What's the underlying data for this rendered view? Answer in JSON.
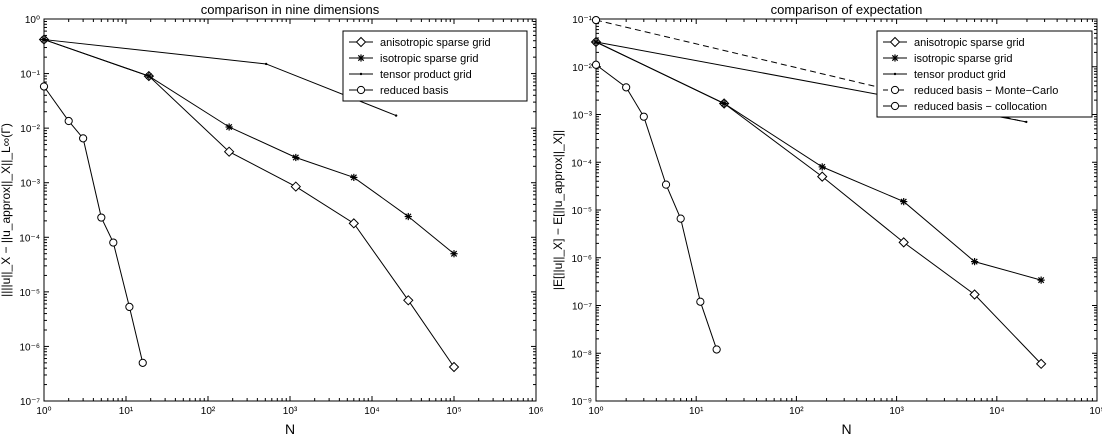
{
  "chart_data": [
    {
      "type": "line",
      "title": "comparison in nine dimensions",
      "xlabel": "N",
      "ylabel": "||||u||_X − ||u_approx||_X||_L∞(Γ)",
      "xscale": "log",
      "yscale": "log",
      "xlim": [
        1,
        1000000
      ],
      "ylim": [
        1e-07,
        1
      ],
      "xticks": [
        "10⁰",
        "10¹",
        "10²",
        "10³",
        "10⁴",
        "10⁵",
        "10⁶"
      ],
      "yticks": [
        "10⁻⁷",
        "10⁻⁶",
        "10⁻⁵",
        "10⁻⁴",
        "10⁻³",
        "10⁻²",
        "10⁻¹",
        "10⁰"
      ],
      "legend_position": "top-right",
      "series": [
        {
          "name": "anisotropic sparse grid",
          "marker": "diamond",
          "x": [
            1,
            19,
            181,
            1177,
            6001,
            27701,
            100001
          ],
          "y": [
            0.42,
            0.09,
            0.0037,
            0.00085,
            0.00018,
            7e-06,
            4.2e-07
          ]
        },
        {
          "name": "isotropic sparse grid",
          "marker": "star",
          "x": [
            1,
            19,
            181,
            1177,
            6001,
            27701,
            100001
          ],
          "y": [
            0.42,
            0.09,
            0.0105,
            0.0029,
            0.00125,
            0.00024,
            5e-05
          ]
        },
        {
          "name": "tensor product grid",
          "marker": "dot",
          "x": [
            1,
            512,
            19683
          ],
          "y": [
            0.42,
            0.15,
            0.017
          ]
        },
        {
          "name": "reduced basis",
          "marker": "circle",
          "x": [
            1,
            2,
            3,
            5,
            7,
            11,
            16
          ],
          "y": [
            0.058,
            0.0135,
            0.0065,
            0.00023,
            8e-05,
            5.3e-06,
            5e-07
          ]
        }
      ]
    },
    {
      "type": "line",
      "title": "comparison of expectation",
      "xlabel": "N",
      "ylabel": "|E[||u||_X] − E[||u_approx||_X]|",
      "xscale": "log",
      "yscale": "log",
      "xlim": [
        1,
        100000
      ],
      "ylim": [
        1e-09,
        0.1
      ],
      "xticks": [
        "10⁰",
        "10¹",
        "10²",
        "10³",
        "10⁴",
        "10⁵"
      ],
      "yticks": [
        "10⁻⁹",
        "10⁻⁸",
        "10⁻⁷",
        "10⁻⁶",
        "10⁻⁵",
        "10⁻⁴",
        "10⁻³",
        "10⁻²",
        "10⁻¹"
      ],
      "legend_position": "top-right",
      "series": [
        {
          "name": "anisotropic sparse grid",
          "marker": "diamond",
          "dash": false,
          "x": [
            1,
            19,
            181,
            1177,
            6001,
            27701
          ],
          "y": [
            0.033,
            0.0017,
            5e-05,
            2.1e-06,
            1.7e-07,
            6e-09
          ]
        },
        {
          "name": "isotropic sparse grid",
          "marker": "star",
          "dash": false,
          "x": [
            1,
            19,
            181,
            1177,
            6001,
            27701
          ],
          "y": [
            0.033,
            0.0017,
            8e-05,
            1.5e-05,
            8.3e-07,
            3.4e-07
          ]
        },
        {
          "name": "tensor product grid",
          "marker": "dot",
          "dash": false,
          "x": [
            1,
            19683
          ],
          "y": [
            0.033,
            0.0007
          ]
        },
        {
          "name": "reduced basis − Monte−Carlo",
          "marker": "circle",
          "dash": true,
          "x": [
            1,
            19000
          ],
          "y": [
            0.095,
            0.0007
          ]
        },
        {
          "name": "reduced basis − collocation",
          "marker": "circle",
          "dash": false,
          "x": [
            1,
            2,
            3,
            5,
            7,
            11,
            16
          ],
          "y": [
            0.011,
            0.0037,
            0.0009,
            3.4e-05,
            6.6e-06,
            1.2e-07,
            1.2e-08
          ]
        }
      ]
    }
  ]
}
